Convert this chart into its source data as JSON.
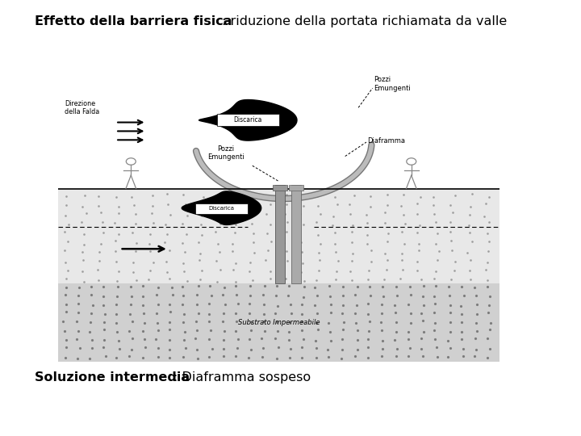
{
  "title_bold": "Effetto della barriera fisica",
  "title_normal": ": riduzione della portata richiamata da valle",
  "subtitle_bold": "Soluzione intermedia",
  "subtitle_normal": ": Diaframma sospeso",
  "bg_color": "#ffffff",
  "title_fontsize": 11.5,
  "subtitle_fontsize": 11.5
}
